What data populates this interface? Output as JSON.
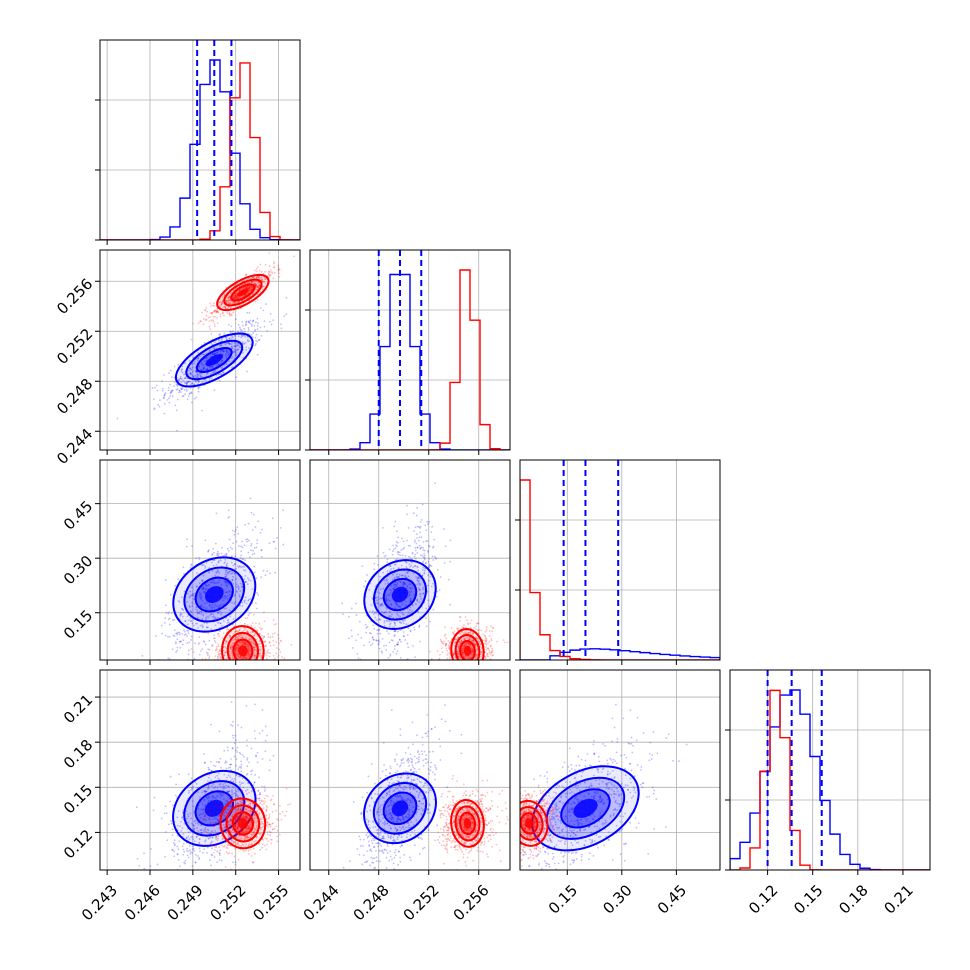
{
  "chart_data": {
    "type": "corner",
    "title": "",
    "parameters": 4,
    "colors": {
      "blue": "#0000ff",
      "red": "#ff0000"
    },
    "grid": true,
    "ranges": [
      [
        0.2425,
        0.2565
      ],
      [
        0.2425,
        0.2585
      ],
      [
        0.02,
        0.57
      ],
      [
        0.095,
        0.228
      ]
    ],
    "ticks": [
      [
        "0.243",
        "0.246",
        "0.249",
        "0.252",
        "0.255"
      ],
      [
        "0.244",
        "0.248",
        "0.252",
        "0.256"
      ],
      [
        "0.15",
        "0.30",
        "0.45"
      ],
      [
        "0.12",
        "0.15",
        "0.18",
        "0.21"
      ]
    ],
    "tick_values": [
      [
        0.243,
        0.246,
        0.249,
        0.252,
        0.255
      ],
      [
        0.244,
        0.248,
        0.252,
        0.256
      ],
      [
        0.15,
        0.3,
        0.45
      ],
      [
        0.12,
        0.15,
        0.18,
        0.21
      ]
    ],
    "series": [
      {
        "color": "#0000ff",
        "means": [
          0.2505,
          0.2497,
          0.2,
          0.136
        ],
        "stds": [
          0.0012,
          0.0011,
          0.065,
          0.016
        ],
        "quantiles": [
          [
            0.2493,
            0.2505,
            0.2517
          ],
          [
            0.248,
            0.2497,
            0.2514
          ],
          [
            0.14,
            0.2,
            0.29
          ],
          [
            0.12,
            0.136,
            0.156
          ]
        ]
      },
      {
        "color": "#ff0000",
        "means": [
          0.2525,
          0.2551,
          0.045,
          0.126
        ],
        "stds": [
          0.0008,
          0.0007,
          0.025,
          0.007
        ]
      }
    ]
  }
}
